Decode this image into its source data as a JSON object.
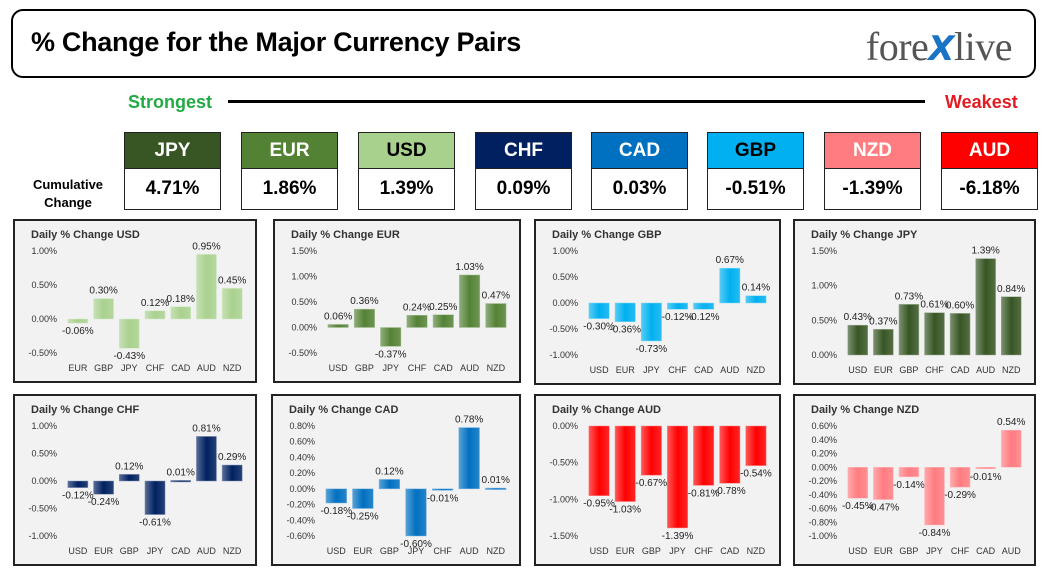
{
  "header": {
    "title": "% Change for the Major Currency Pairs",
    "logo_left": "fore",
    "logo_x": "X",
    "logo_right": "live"
  },
  "scale": {
    "strongest": "Strongest",
    "weakest": "Weakest"
  },
  "cumulative": {
    "label_line1": "Cumulative",
    "label_line2": "Change",
    "items": [
      {
        "code": "JPY",
        "value": "4.71%",
        "bg": "#375623",
        "fg": "#ffffff"
      },
      {
        "code": "EUR",
        "value": "1.86%",
        "bg": "#548235",
        "fg": "#ffffff"
      },
      {
        "code": "USD",
        "value": "1.39%",
        "bg": "#a9d18e",
        "fg": "#000000"
      },
      {
        "code": "CHF",
        "value": "0.09%",
        "bg": "#002060",
        "fg": "#ffffff"
      },
      {
        "code": "CAD",
        "value": "0.03%",
        "bg": "#0070c0",
        "fg": "#ffffff"
      },
      {
        "code": "GBP",
        "value": "-0.51%",
        "bg": "#00b0f0",
        "fg": "#000000"
      },
      {
        "code": "NZD",
        "value": "-1.39%",
        "bg": "#ff7c80",
        "fg": "#ffffff"
      },
      {
        "code": "AUD",
        "value": "-6.18%",
        "bg": "#ff0000",
        "fg": "#ffffff"
      }
    ]
  },
  "chart_data": [
    {
      "type": "bar",
      "title": "Daily % Change USD",
      "categories": [
        "EUR",
        "GBP",
        "JPY",
        "CHF",
        "CAD",
        "AUD",
        "NZD"
      ],
      "values": [
        -0.06,
        0.3,
        -0.43,
        0.12,
        0.18,
        0.95,
        0.45
      ],
      "labels": [
        "-0.06%",
        "0.30%",
        "-0.43%",
        "0.12%",
        "0.18%",
        "0.95%",
        "0.45%"
      ],
      "ticks": [
        1.0,
        0.5,
        0.0,
        -0.5
      ],
      "tick_labels": [
        "1.00%",
        "0.50%",
        "0.00%",
        "-0.50%"
      ],
      "ylim": [
        -0.5,
        1.0
      ],
      "color": "#a9d18e"
    },
    {
      "type": "bar",
      "title": "Daily % Change EUR",
      "categories": [
        "USD",
        "GBP",
        "JPY",
        "CHF",
        "CAD",
        "AUD",
        "NZD"
      ],
      "values": [
        0.06,
        0.36,
        -0.37,
        0.24,
        0.25,
        1.03,
        0.47
      ],
      "labels": [
        "0.06%",
        "0.36%",
        "-0.37%",
        "0.24%",
        "0.25%",
        "1.03%",
        "0.47%"
      ],
      "ticks": [
        1.5,
        1.0,
        0.5,
        0.0,
        -0.5
      ],
      "tick_labels": [
        "1.50%",
        "1.00%",
        "0.50%",
        "0.00%",
        "-0.50%"
      ],
      "ylim": [
        -0.5,
        1.5
      ],
      "color": "#548235"
    },
    {
      "type": "bar",
      "title": "Daily % Change GBP",
      "categories": [
        "USD",
        "EUR",
        "JPY",
        "CHF",
        "CAD",
        "AUD",
        "NZD"
      ],
      "values": [
        -0.3,
        -0.36,
        -0.73,
        -0.12,
        -0.12,
        0.67,
        0.14
      ],
      "labels": [
        "-0.30%",
        "-0.36%",
        "-0.73%",
        "-0.12%",
        "-0.12%",
        "0.67%",
        "0.14%"
      ],
      "ticks": [
        1.0,
        0.5,
        0.0,
        -0.5,
        -1.0
      ],
      "tick_labels": [
        "1.00%",
        "0.50%",
        "0.00%",
        "-0.50%",
        "-1.00%"
      ],
      "ylim": [
        -1.0,
        1.0
      ],
      "color": "#00b0f0"
    },
    {
      "type": "bar",
      "title": "Daily % Change JPY",
      "categories": [
        "USD",
        "EUR",
        "GBP",
        "CHF",
        "CAD",
        "AUD",
        "NZD"
      ],
      "values": [
        0.43,
        0.37,
        0.73,
        0.61,
        0.6,
        1.39,
        0.84
      ],
      "labels": [
        "0.43%",
        "0.37%",
        "0.73%",
        "0.61%",
        "0.60%",
        "1.39%",
        "0.84%"
      ],
      "ticks": [
        1.5,
        1.0,
        0.5,
        0.0
      ],
      "tick_labels": [
        "1.50%",
        "1.00%",
        "0.50%",
        "0.00%"
      ],
      "ylim": [
        0.0,
        1.5
      ],
      "color": "#375623"
    },
    {
      "type": "bar",
      "title": "Daily % Change CHF",
      "categories": [
        "USD",
        "EUR",
        "GBP",
        "JPY",
        "CAD",
        "AUD",
        "NZD"
      ],
      "values": [
        -0.12,
        -0.24,
        0.12,
        -0.61,
        0.01,
        0.81,
        0.29
      ],
      "labels": [
        "-0.12%",
        "-0.24%",
        "0.12%",
        "-0.61%",
        "0.01%",
        "0.81%",
        "0.29%"
      ],
      "ticks": [
        1.0,
        0.5,
        0.0,
        -0.5,
        -1.0
      ],
      "tick_labels": [
        "1.00%",
        "0.50%",
        "0.00%",
        "-0.50%",
        "-1.00%"
      ],
      "ylim": [
        -1.0,
        1.0
      ],
      "color": "#002060"
    },
    {
      "type": "bar",
      "title": "Daily % Change CAD",
      "categories": [
        "USD",
        "EUR",
        "GBP",
        "JPY",
        "CHF",
        "AUD",
        "NZD"
      ],
      "values": [
        -0.18,
        -0.25,
        0.12,
        -0.6,
        -0.01,
        0.78,
        0.01
      ],
      "labels": [
        "-0.18%",
        "-0.25%",
        "0.12%",
        "-0.60%",
        "-0.01%",
        "0.78%",
        "0.01%"
      ],
      "ticks": [
        0.8,
        0.6,
        0.4,
        0.2,
        0.0,
        -0.2,
        -0.4,
        -0.6
      ],
      "tick_labels": [
        "0.80%",
        "0.60%",
        "0.40%",
        "0.20%",
        "0.00%",
        "-0.20%",
        "-0.40%",
        "-0.60%"
      ],
      "ylim": [
        -0.6,
        0.8
      ],
      "color": "#0070c0"
    },
    {
      "type": "bar",
      "title": "Daily % Change AUD",
      "categories": [
        "USD",
        "EUR",
        "GBP",
        "JPY",
        "CHF",
        "CAD",
        "NZD"
      ],
      "values": [
        -0.95,
        -1.03,
        -0.67,
        -1.39,
        -0.81,
        -0.78,
        -0.54
      ],
      "labels": [
        "-0.95%",
        "-1.03%",
        "-0.67%",
        "-1.39%",
        "-0.81%",
        "-0.78%",
        "-0.54%"
      ],
      "ticks": [
        0.0,
        -0.5,
        -1.0,
        -1.5
      ],
      "tick_labels": [
        "0.00%",
        "-0.50%",
        "-1.00%",
        "-1.50%"
      ],
      "ylim": [
        -1.5,
        0.0
      ],
      "color": "#ff0000"
    },
    {
      "type": "bar",
      "title": "Daily % Change NZD",
      "categories": [
        "USD",
        "EUR",
        "GBP",
        "JPY",
        "CHF",
        "CAD",
        "AUD"
      ],
      "values": [
        -0.45,
        -0.47,
        -0.14,
        -0.84,
        -0.29,
        -0.01,
        0.54
      ],
      "labels": [
        "-0.45%",
        "-0.47%",
        "-0.14%",
        "-0.84%",
        "-0.29%",
        "-0.01%",
        "0.54%"
      ],
      "ticks": [
        0.6,
        0.4,
        0.2,
        0.0,
        -0.2,
        -0.4,
        -0.6,
        -0.8,
        -1.0
      ],
      "tick_labels": [
        "0.60%",
        "0.40%",
        "0.20%",
        "0.00%",
        "-0.20%",
        "-0.40%",
        "-0.60%",
        "-0.80%",
        "-1.00%"
      ],
      "ylim": [
        -1.0,
        0.6
      ],
      "color": "#ff7c80"
    }
  ]
}
